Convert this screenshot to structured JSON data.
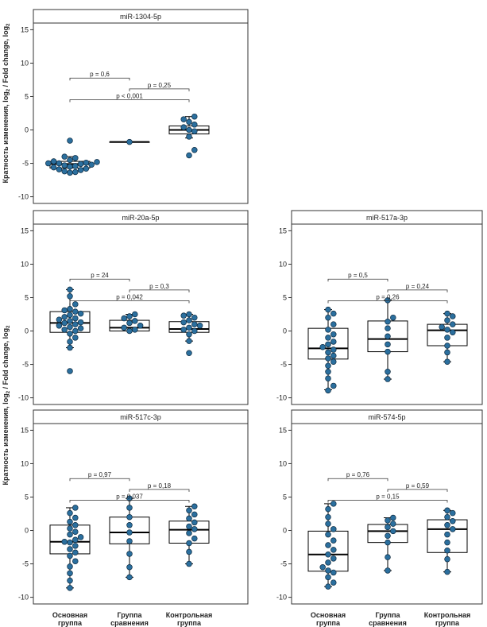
{
  "y_axis_label_main": "Кратность изменения, log",
  "y_axis_label_sub": "2",
  "y_axis_label_tail": " / Fold change, log",
  "y_axis_label_sub2": "2",
  "group_labels": [
    [
      "Основная",
      "группа"
    ],
    [
      "Группа",
      "сравнения"
    ],
    [
      "Контрольная",
      "группа"
    ]
  ],
  "colors": {
    "point": "#2b6f9e",
    "point_stroke": "#0d2a40",
    "frame": "#333333",
    "box": "#000000"
  },
  "chart_data": [
    {
      "type": "box",
      "title": "miR-1304-5p",
      "ylim": [
        -11,
        16
      ],
      "yticks": [
        -10,
        -5,
        0,
        5,
        10,
        15
      ],
      "categories": [
        "Основная группа",
        "Группа сравнения",
        "Контрольная группа"
      ],
      "boxes": [
        {
          "q1": -5.7,
          "median": -5.1,
          "q3": -4.7,
          "min": -6.4,
          "max": -4.0
        },
        {
          "q1": -1.8,
          "median": -1.8,
          "q3": -1.8,
          "min": -1.8,
          "max": -1.8
        },
        {
          "q1": -0.6,
          "median": 0.0,
          "q3": 0.6,
          "min": -1.2,
          "max": 2.0
        }
      ],
      "points": [
        [
          -6.4,
          -6.3,
          -6.2,
          -6.0,
          -5.9,
          -5.8,
          -5.6,
          -5.5,
          -5.4,
          -5.3,
          -5.2,
          -5.1,
          -5.0,
          -5.0,
          -4.9,
          -4.8,
          -4.7,
          -4.5,
          -4.2,
          -4.0,
          -1.6
        ],
        [
          -1.8
        ],
        [
          -3.8,
          -3.0,
          -1.0,
          -0.2,
          0.0,
          0.4,
          0.8,
          1.2,
          1.6,
          2.0
        ]
      ],
      "comparisons": [
        {
          "from": 0,
          "to": 1,
          "label": "p = 0,6"
        },
        {
          "from": 1,
          "to": 2,
          "label": "p = 0,25"
        },
        {
          "from": 0,
          "to": 2,
          "label": "p < 0,001"
        }
      ]
    },
    {
      "type": "box",
      "title": "miR-20a-5p",
      "ylim": [
        -11,
        16
      ],
      "yticks": [
        -10,
        -5,
        0,
        5,
        10,
        15
      ],
      "categories": [
        "Основная группа",
        "Группа сравнения",
        "Контрольная группа"
      ],
      "boxes": [
        {
          "q1": -0.2,
          "median": 1.2,
          "q3": 2.9,
          "min": -2.5,
          "max": 6.2
        },
        {
          "q1": 0.0,
          "median": 0.5,
          "q3": 1.6,
          "min": 0.0,
          "max": 2.5
        },
        {
          "q1": -0.2,
          "median": 0.3,
          "q3": 1.4,
          "min": -1.5,
          "max": 2.5
        }
      ],
      "points": [
        [
          -6.0,
          -2.5,
          -1.6,
          -1.0,
          -0.4,
          0.0,
          0.2,
          0.4,
          0.6,
          0.8,
          1.0,
          1.2,
          1.3,
          1.5,
          1.7,
          1.9,
          2.1,
          2.4,
          2.6,
          2.9,
          3.1,
          3.3,
          4.0,
          5.2,
          6.2
        ],
        [
          0.0,
          0.2,
          0.5,
          0.8,
          1.2,
          1.5,
          1.9,
          2.2,
          2.5
        ],
        [
          -3.3,
          -1.5,
          -0.5,
          0.0,
          0.2,
          0.5,
          0.8,
          1.0,
          1.3,
          1.6,
          2.0,
          2.3,
          2.5
        ]
      ],
      "comparisons": [
        {
          "from": 0,
          "to": 1,
          "label": "p = 24"
        },
        {
          "from": 1,
          "to": 2,
          "label": "p = 0,3"
        },
        {
          "from": 0,
          "to": 2,
          "label": "p = 0,042"
        }
      ]
    },
    {
      "type": "box",
      "title": "miR-517a-3p",
      "ylim": [
        -11,
        16
      ],
      "yticks": [
        -10,
        -5,
        0,
        5,
        10,
        15
      ],
      "categories": [
        "Основная группа",
        "Группа сравнения",
        "Контрольная группа"
      ],
      "boxes": [
        {
          "q1": -4.2,
          "median": -2.6,
          "q3": 0.4,
          "min": -8.8,
          "max": 3.2
        },
        {
          "q1": -3.1,
          "median": -1.2,
          "q3": 1.5,
          "min": -7.2,
          "max": 4.6
        },
        {
          "q1": -2.2,
          "median": 0.1,
          "q3": 1.0,
          "min": -4.6,
          "max": 2.6
        }
      ],
      "points": [
        [
          -8.9,
          -8.2,
          -7.1,
          -6.1,
          -5.2,
          -4.6,
          -4.1,
          -3.7,
          -3.2,
          -2.8,
          -2.4,
          -2.0,
          -1.6,
          -1.0,
          -0.5,
          0.2,
          1.0,
          2.0,
          2.6,
          3.2
        ],
        [
          -7.2,
          -6.1,
          -3.1,
          -2.0,
          -0.8,
          0.4,
          1.4,
          2.0,
          4.6
        ],
        [
          -4.6,
          -3.2,
          -2.2,
          -1.0,
          -0.2,
          0.2,
          0.6,
          1.0,
          1.6,
          2.2,
          2.6
        ]
      ],
      "comparisons": [
        {
          "from": 0,
          "to": 1,
          "label": "p = 0,5"
        },
        {
          "from": 1,
          "to": 2,
          "label": "p = 0,24"
        },
        {
          "from": 0,
          "to": 2,
          "label": "p = 0,26"
        }
      ]
    },
    {
      "type": "box",
      "title": "miR-517c-3p",
      "ylim": [
        -11,
        16
      ],
      "yticks": [
        -10,
        -5,
        0,
        5,
        10,
        15
      ],
      "categories": [
        "Основная группа",
        "Группа сравнения",
        "Контрольная группа"
      ],
      "boxes": [
        {
          "q1": -3.5,
          "median": -1.7,
          "q3": 0.8,
          "min": -8.6,
          "max": 3.4
        },
        {
          "q1": -2.0,
          "median": -0.3,
          "q3": 2.0,
          "min": -7.0,
          "max": 4.8
        },
        {
          "q1": -1.9,
          "median": 0.1,
          "q3": 1.4,
          "min": -5.0,
          "max": 3.6
        }
      ],
      "points": [
        [
          -8.6,
          -7.5,
          -6.4,
          -5.4,
          -4.6,
          -3.8,
          -3.3,
          -2.8,
          -2.3,
          -1.8,
          -1.7,
          -1.4,
          -1.0,
          -0.6,
          -0.2,
          0.3,
          0.8,
          1.3,
          1.9,
          2.6,
          3.4
        ],
        [
          -7.0,
          -5.5,
          -3.5,
          -1.6,
          -0.3,
          0.8,
          2.0,
          3.4,
          4.8
        ],
        [
          -5.0,
          -3.2,
          -1.9,
          -1.2,
          -0.4,
          0.2,
          0.6,
          1.2,
          1.8,
          2.4,
          3.0,
          3.6
        ]
      ],
      "comparisons": [
        {
          "from": 0,
          "to": 1,
          "label": "p = 0,97"
        },
        {
          "from": 1,
          "to": 2,
          "label": "p = 0,18"
        },
        {
          "from": 0,
          "to": 2,
          "label": "p = 0,037"
        }
      ]
    },
    {
      "type": "box",
      "title": "miR-574-5p",
      "ylim": [
        -11,
        16
      ],
      "yticks": [
        -10,
        -5,
        0,
        5,
        10,
        15
      ],
      "categories": [
        "Основная группа",
        "Группа сравнения",
        "Контрольная группа"
      ],
      "boxes": [
        {
          "q1": -6.1,
          "median": -3.6,
          "q3": -0.1,
          "min": -8.4,
          "max": 4.0
        },
        {
          "q1": -1.8,
          "median": -0.1,
          "q3": 0.9,
          "min": -6.0,
          "max": 1.9
        },
        {
          "q1": -3.3,
          "median": 0.2,
          "q3": 1.6,
          "min": -6.2,
          "max": 3.0
        }
      ],
      "points": [
        [
          -8.4,
          -7.8,
          -7.0,
          -6.3,
          -6.0,
          -5.5,
          -4.8,
          -4.2,
          -3.6,
          -2.9,
          -2.2,
          -1.5,
          -0.6,
          0.2,
          1.0,
          2.0,
          3.2,
          4.0
        ],
        [
          -6.0,
          -4.0,
          -1.8,
          -0.8,
          -0.1,
          0.5,
          1.0,
          1.5,
          1.9
        ],
        [
          -6.2,
          -4.3,
          -3.0,
          -1.8,
          -0.6,
          0.2,
          0.8,
          1.4,
          2.0,
          2.6,
          3.0
        ]
      ],
      "comparisons": [
        {
          "from": 0,
          "to": 1,
          "label": "p = 0,76"
        },
        {
          "from": 1,
          "to": 2,
          "label": "p = 0,59"
        },
        {
          "from": 0,
          "to": 2,
          "label": "p = 0,15"
        }
      ]
    }
  ]
}
